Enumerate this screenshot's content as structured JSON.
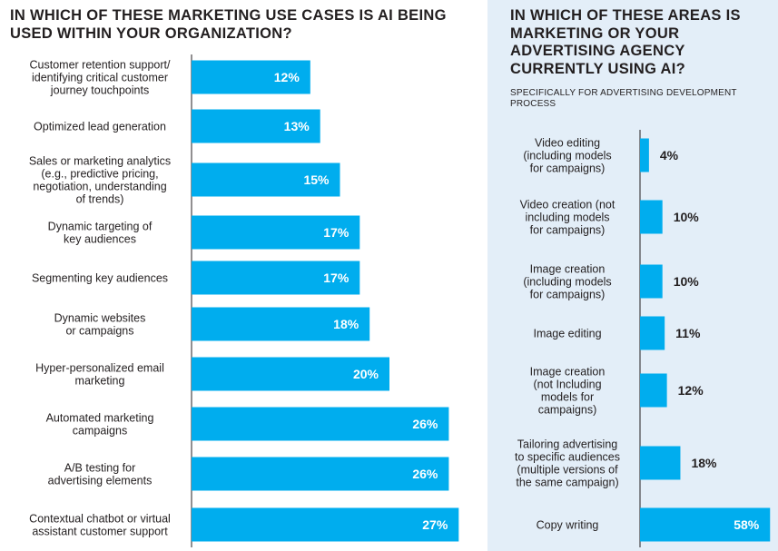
{
  "left_title": "IN WHICH OF THESE MARKETING USE CASES IS AI BEING USED WITHIN YOUR ORGANIZATION?",
  "right_title": "IN WHICH OF THESE AREAS IS MARKETING OR YOUR ADVERTISING AGENCY CURRENTLY USING AI?",
  "right_subtitle": "SPECIFICALLY FOR ADVERTISING DEVELOPMENT PROCESS",
  "colors": {
    "bar": "#00adee",
    "right_background": "#e3eef8",
    "text": "#231f20"
  },
  "chart_data": [
    {
      "type": "bar",
      "orientation": "horizontal",
      "title": "IN WHICH OF THESE MARKETING USE CASES IS AI BEING USED WITHIN YOUR ORGANIZATION?",
      "unit": "%",
      "categories": [
        "Customer retention support/ identifying critical customer journey touchpoints",
        "Optimized lead generation",
        "Sales or marketing analytics (e.g., predictive pricing, negotiation, understanding of trends)",
        "Dynamic targeting of key audiences",
        "Segmenting key audiences",
        "Dynamic websites or campaigns",
        "Hyper-personalized email marketing",
        "Automated marketing campaigns",
        "A/B testing for advertising elements",
        "Contextual chatbot or virtual assistant customer support"
      ],
      "category_lines": [
        [
          "Customer retention support/",
          "identifying critical customer",
          "journey touchpoints"
        ],
        [
          "Optimized lead generation"
        ],
        [
          "Sales or marketing analytics",
          "(e.g., predictive pricing,",
          "negotiation, understanding",
          "of trends)"
        ],
        [
          "Dynamic targeting of",
          "key audiences"
        ],
        [
          "Segmenting key audiences"
        ],
        [
          "Dynamic websites",
          "or campaigns"
        ],
        [
          "Hyper-personalized email",
          "marketing"
        ],
        [
          "Automated marketing",
          "campaigns"
        ],
        [
          "A/B testing for",
          "advertising elements"
        ],
        [
          "Contextual chatbot or virtual",
          "assistant customer support"
        ]
      ],
      "values": [
        12,
        13,
        15,
        17,
        17,
        18,
        20,
        26,
        26,
        27
      ],
      "labels": [
        "12%",
        "13%",
        "15%",
        "17%",
        "17%",
        "18%",
        "20%",
        "26%",
        "26%",
        "27%"
      ]
    },
    {
      "type": "bar",
      "orientation": "horizontal",
      "title": "IN WHICH OF THESE AREAS IS MARKETING OR YOUR ADVERTISING AGENCY CURRENTLY USING AI?",
      "subtitle": "SPECIFICALLY FOR ADVERTISING DEVELOPMENT PROCESS",
      "unit": "%",
      "categories": [
        "Video editing (including models for campaigns)",
        "Video creation (not including models for campaigns)",
        "Image creation (including models for campaigns)",
        "Image editing",
        "Image creation (not Including models for campaigns)",
        "Tailoring advertising to specific audiences (multiple versions of the same campaign)",
        "Copy writing"
      ],
      "category_lines": [
        [
          "Video editing",
          "(including models",
          "for campaigns)"
        ],
        [
          "Video creation (not",
          "including models",
          "for campaigns)"
        ],
        [
          "Image creation",
          "(including models",
          "for campaigns)"
        ],
        [
          "Image editing"
        ],
        [
          "Image creation",
          "(not Including",
          "models for",
          "campaigns)"
        ],
        [
          "Tailoring advertising",
          "to specific audiences",
          "(multiple versions of",
          "the same campaign)"
        ],
        [
          "Copy writing"
        ]
      ],
      "values": [
        4,
        10,
        10,
        11,
        12,
        18,
        58
      ],
      "labels": [
        "4%",
        "10%",
        "10%",
        "11%",
        "12%",
        "18%",
        "58%"
      ]
    }
  ]
}
